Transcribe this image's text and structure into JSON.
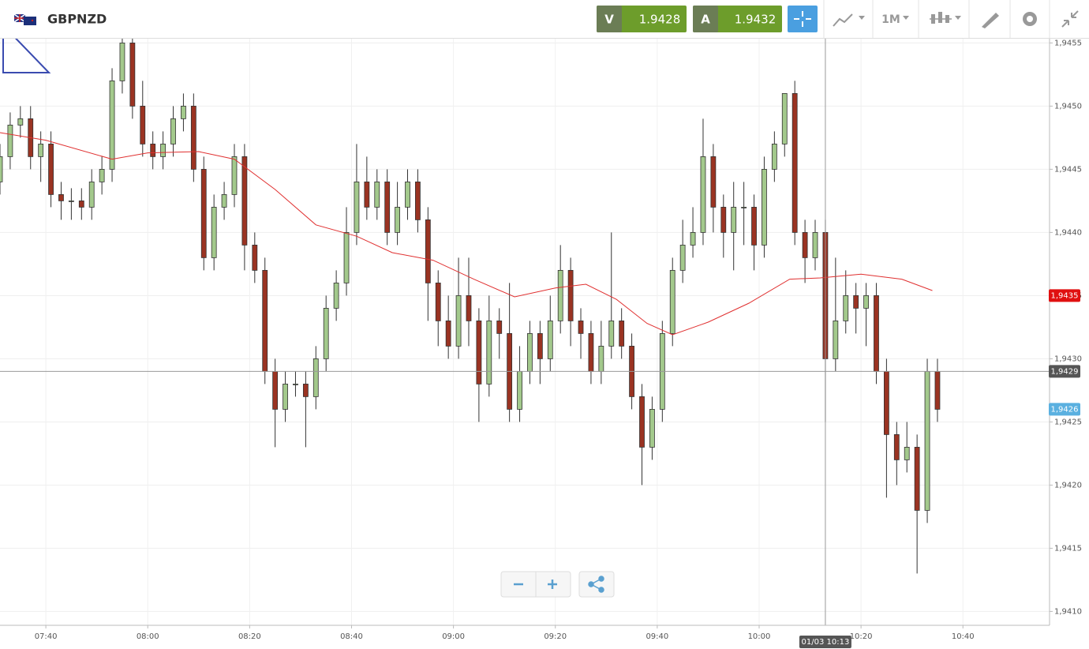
{
  "header": {
    "instrument": "GBPNZD",
    "sell": {
      "label": "V",
      "price": 1.9428
    },
    "buy": {
      "label": "A",
      "price": 1.9432
    },
    "timeframe": "1M"
  },
  "chart_data": {
    "type": "candlestick",
    "x": [
      "07:31",
      "07:33",
      "07:35",
      "07:37",
      "07:39",
      "07:41",
      "07:43",
      "07:45",
      "07:47",
      "07:49",
      "07:51",
      "07:53",
      "07:55",
      "07:57",
      "07:59",
      "08:01",
      "08:03",
      "08:05",
      "08:07",
      "08:09",
      "08:11",
      "08:13",
      "08:15",
      "08:17",
      "08:19",
      "08:21",
      "08:23",
      "08:25",
      "08:27",
      "08:29",
      "08:31",
      "08:33",
      "08:35",
      "08:37",
      "08:39",
      "08:41",
      "08:43",
      "08:45",
      "08:47",
      "08:49",
      "08:51",
      "08:53",
      "08:55",
      "08:57",
      "08:59",
      "09:01",
      "09:03",
      "09:05",
      "09:07",
      "09:09",
      "09:11",
      "09:13",
      "09:15",
      "09:17",
      "09:19",
      "09:21",
      "09:23",
      "09:25",
      "09:27",
      "09:29",
      "09:31",
      "09:33",
      "09:35",
      "09:37",
      "09:39",
      "09:41",
      "09:43",
      "09:45",
      "09:47",
      "09:49",
      "09:51",
      "09:53",
      "09:55",
      "09:57",
      "09:59",
      "10:01",
      "10:03",
      "10:05",
      "10:07",
      "10:09",
      "10:11",
      "10:13",
      "10:15",
      "10:17",
      "10:19",
      "10:21",
      "10:23",
      "10:25",
      "10:27",
      "10:29",
      "10:31",
      "10:33",
      "10:35"
    ],
    "open": [
      1.9444,
      1.9446,
      1.94485,
      1.9449,
      1.9446,
      1.9447,
      1.9443,
      1.94425,
      1.94425,
      1.9442,
      1.9444,
      1.9445,
      1.9452,
      1.9455,
      1.945,
      1.9447,
      1.9446,
      1.9447,
      1.9449,
      1.945,
      1.9445,
      1.9438,
      1.9442,
      1.9443,
      1.9446,
      1.9439,
      1.9437,
      1.9429,
      1.9426,
      1.9428,
      1.9428,
      1.9427,
      1.943,
      1.9434,
      1.9436,
      1.944,
      1.9444,
      1.9442,
      1.9444,
      1.944,
      1.9442,
      1.9444,
      1.9441,
      1.9436,
      1.9433,
      1.9431,
      1.9435,
      1.9433,
      1.9428,
      1.9433,
      1.9432,
      1.9426,
      1.9429,
      1.9432,
      1.943,
      1.9433,
      1.9437,
      1.9433,
      1.9432,
      1.9429,
      1.9431,
      1.9433,
      1.9431,
      1.9427,
      1.9423,
      1.9426,
      1.9432,
      1.9437,
      1.9439,
      1.944,
      1.9446,
      1.9442,
      1.944,
      1.9442,
      1.9442,
      1.9439,
      1.9445,
      1.9447,
      1.9451,
      1.944,
      1.9438,
      1.944,
      1.943,
      1.9433,
      1.9435,
      1.9434,
      1.9435,
      1.9429,
      1.9424,
      1.9422,
      1.9423,
      1.9418,
      1.9429
    ],
    "high": [
      1.9447,
      1.94495,
      1.945,
      1.945,
      1.9448,
      1.9448,
      1.9444,
      1.94435,
      1.94435,
      1.9445,
      1.9446,
      1.9453,
      1.9456,
      1.9456,
      1.9452,
      1.9448,
      1.9448,
      1.945,
      1.9451,
      1.9451,
      1.9446,
      1.9443,
      1.9444,
      1.9447,
      1.9447,
      1.944,
      1.9438,
      1.943,
      1.9429,
      1.9429,
      1.9429,
      1.9431,
      1.9435,
      1.9437,
      1.9442,
      1.9447,
      1.9446,
      1.9445,
      1.9445,
      1.9444,
      1.9445,
      1.9445,
      1.9442,
      1.9437,
      1.9435,
      1.9438,
      1.9438,
      1.9434,
      1.9435,
      1.9434,
      1.9436,
      1.9431,
      1.9433,
      1.9433,
      1.9435,
      1.9439,
      1.9438,
      1.9434,
      1.9433,
      1.9433,
      1.944,
      1.9434,
      1.9432,
      1.9428,
      1.9427,
      1.9433,
      1.9438,
      1.9441,
      1.9442,
      1.9449,
      1.9447,
      1.9443,
      1.9444,
      1.9444,
      1.9443,
      1.9446,
      1.9448,
      1.9451,
      1.9452,
      1.9441,
      1.9441,
      1.9441,
      1.9438,
      1.9437,
      1.9436,
      1.9436,
      1.9436,
      1.943,
      1.9425,
      1.9425,
      1.9424,
      1.943,
      1.943
    ],
    "low": [
      1.9443,
      1.9445,
      1.94475,
      1.9445,
      1.9444,
      1.9442,
      1.9441,
      1.9441,
      1.9441,
      1.9441,
      1.9443,
      1.9444,
      1.9451,
      1.9449,
      1.9446,
      1.9445,
      1.9445,
      1.9446,
      1.9448,
      1.9444,
      1.9437,
      1.9437,
      1.9441,
      1.9442,
      1.9437,
      1.9436,
      1.9428,
      1.9423,
      1.9425,
      1.9427,
      1.9423,
      1.9426,
      1.9429,
      1.9433,
      1.9435,
      1.9439,
      1.9441,
      1.9441,
      1.9439,
      1.9439,
      1.9441,
      1.944,
      1.9433,
      1.9431,
      1.943,
      1.943,
      1.9431,
      1.9425,
      1.9427,
      1.943,
      1.9425,
      1.9425,
      1.9428,
      1.9428,
      1.9429,
      1.9432,
      1.9431,
      1.943,
      1.9428,
      1.9428,
      1.943,
      1.943,
      1.9426,
      1.942,
      1.9422,
      1.9425,
      1.9431,
      1.9436,
      1.9438,
      1.9439,
      1.944,
      1.9438,
      1.9437,
      1.9439,
      1.9437,
      1.9438,
      1.9444,
      1.9446,
      1.9439,
      1.9436,
      1.9437,
      1.9425,
      1.9429,
      1.9432,
      1.9432,
      1.9431,
      1.9428,
      1.9419,
      1.942,
      1.9421,
      1.9413,
      1.9417,
      1.9425
    ],
    "close": [
      1.9446,
      1.94485,
      1.9449,
      1.9446,
      1.9447,
      1.9443,
      1.94425,
      1.94425,
      1.9442,
      1.9444,
      1.9445,
      1.9452,
      1.9455,
      1.945,
      1.9447,
      1.9446,
      1.9447,
      1.9449,
      1.945,
      1.9445,
      1.9438,
      1.9442,
      1.9443,
      1.9446,
      1.9439,
      1.9437,
      1.9429,
      1.9426,
      1.9428,
      1.9428,
      1.9427,
      1.943,
      1.9434,
      1.9436,
      1.944,
      1.9444,
      1.9442,
      1.9444,
      1.944,
      1.9442,
      1.9444,
      1.9441,
      1.9436,
      1.9433,
      1.9431,
      1.9435,
      1.9433,
      1.9428,
      1.9433,
      1.9432,
      1.9426,
      1.9429,
      1.9432,
      1.943,
      1.9433,
      1.9437,
      1.9433,
      1.9432,
      1.9429,
      1.9431,
      1.9433,
      1.9431,
      1.9427,
      1.9423,
      1.9426,
      1.9432,
      1.9437,
      1.9439,
      1.944,
      1.9446,
      1.9442,
      1.944,
      1.9442,
      1.9442,
      1.9439,
      1.9445,
      1.9447,
      1.9451,
      1.944,
      1.9438,
      1.944,
      1.943,
      1.9433,
      1.9435,
      1.9434,
      1.9435,
      1.9429,
      1.9424,
      1.9422,
      1.9423,
      1.9418,
      1.9429,
      1.9426
    ],
    "up_color": "#a3c98c",
    "down_color": "#9a3322",
    "moving_average": {
      "color": "#e03030",
      "x": [
        "07:31",
        "07:40",
        "07:53",
        "08:00",
        "08:10",
        "08:17",
        "08:25",
        "08:33",
        "08:41",
        "08:48",
        "08:56",
        "09:04",
        "09:12",
        "09:20",
        "09:26",
        "09:32",
        "09:38",
        "09:43",
        "09:50",
        "09:58",
        "10:06",
        "10:12",
        "10:20",
        "10:28",
        "10:34"
      ],
      "values": [
        1.94479,
        1.94473,
        1.94458,
        1.94463,
        1.94464,
        1.94458,
        1.94434,
        1.94406,
        1.94397,
        1.94384,
        1.94378,
        1.94363,
        1.94349,
        1.94356,
        1.94359,
        1.94347,
        1.94328,
        1.94319,
        1.94329,
        1.94344,
        1.94363,
        1.94364,
        1.94367,
        1.94363,
        1.94354
      ]
    },
    "xlim": [
      "07:31",
      "10:57"
    ],
    "xticks": [
      "07:40",
      "08:00",
      "08:20",
      "08:40",
      "09:00",
      "09:20",
      "09:40",
      "10:00",
      "10:20",
      "10:40"
    ],
    "ylim": [
      1.94089,
      1.94554
    ],
    "yticks": [
      {
        "value": 1.941,
        "label": "1,9410"
      },
      {
        "value": 1.9415,
        "label": "1,9415"
      },
      {
        "value": 1.942,
        "label": "1,9420"
      },
      {
        "value": 1.9425,
        "label": "1,9425"
      },
      {
        "value": 1.943,
        "label": "1,9430"
      },
      {
        "value": 1.9435,
        "label": "1,9435"
      },
      {
        "value": 1.944,
        "label": "1,9440"
      },
      {
        "value": 1.9445,
        "label": "1,9445"
      },
      {
        "value": 1.945,
        "label": "1,9450"
      },
      {
        "value": 1.9455,
        "label": "1,9455"
      }
    ],
    "grid": true,
    "price_tags": [
      {
        "value": 1.9435,
        "label": "1,9435",
        "color": "#e01010"
      },
      {
        "value": 1.9426,
        "label": "1,9426",
        "color": "#5ab0e0"
      }
    ],
    "crosshair": {
      "x": "10:13",
      "x_label": "01/03 10:13",
      "y": 1.9429,
      "y_label": "1,9429"
    }
  }
}
